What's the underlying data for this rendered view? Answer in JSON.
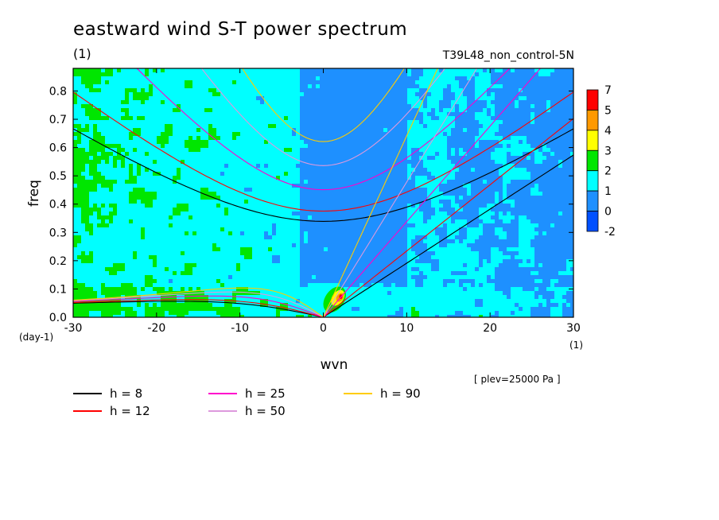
{
  "chart_data": {
    "type": "heatmap",
    "title": "eastward wind S-T power spectrum",
    "subtitle_left": "(1)",
    "subtitle_right": "T39L48_non_control-5N",
    "xlabel": "wvn",
    "ylabel": "freq",
    "x_unit": "(1)",
    "y_unit": "(day-1)",
    "xlim": [
      -30,
      30
    ],
    "ylim": [
      0,
      0.88
    ],
    "x_ticks": [
      "-30",
      "-20",
      "-10",
      "0",
      "10",
      "20",
      "30"
    ],
    "y_ticks": [
      "0.0",
      "0.1",
      "0.2",
      "0.3",
      "0.4",
      "0.5",
      "0.6",
      "0.7",
      "0.8"
    ],
    "colorbar": {
      "levels": [
        "7",
        "5",
        "4",
        "3",
        "2",
        "1",
        "0",
        "-2"
      ],
      "colors": [
        "#ff0000",
        "#ff9900",
        "#ffff00",
        "#00e600",
        "#00ffff",
        "#1e90ff",
        "#0050ff"
      ]
    },
    "dispersion_curves": [
      {
        "name": "h =  8",
        "h": 8,
        "color": "#000000"
      },
      {
        "name": "h = 12",
        "h": 12,
        "color": "#ff0000"
      },
      {
        "name": "h = 25",
        "h": 25,
        "color": "#ff00cc"
      },
      {
        "name": "h = 50",
        "h": 50,
        "color": "#dd99dd"
      },
      {
        "name": "h = 90",
        "h": 90,
        "color": "#ffcc00"
      }
    ],
    "note": "[ plev=25000 Pa ]"
  }
}
